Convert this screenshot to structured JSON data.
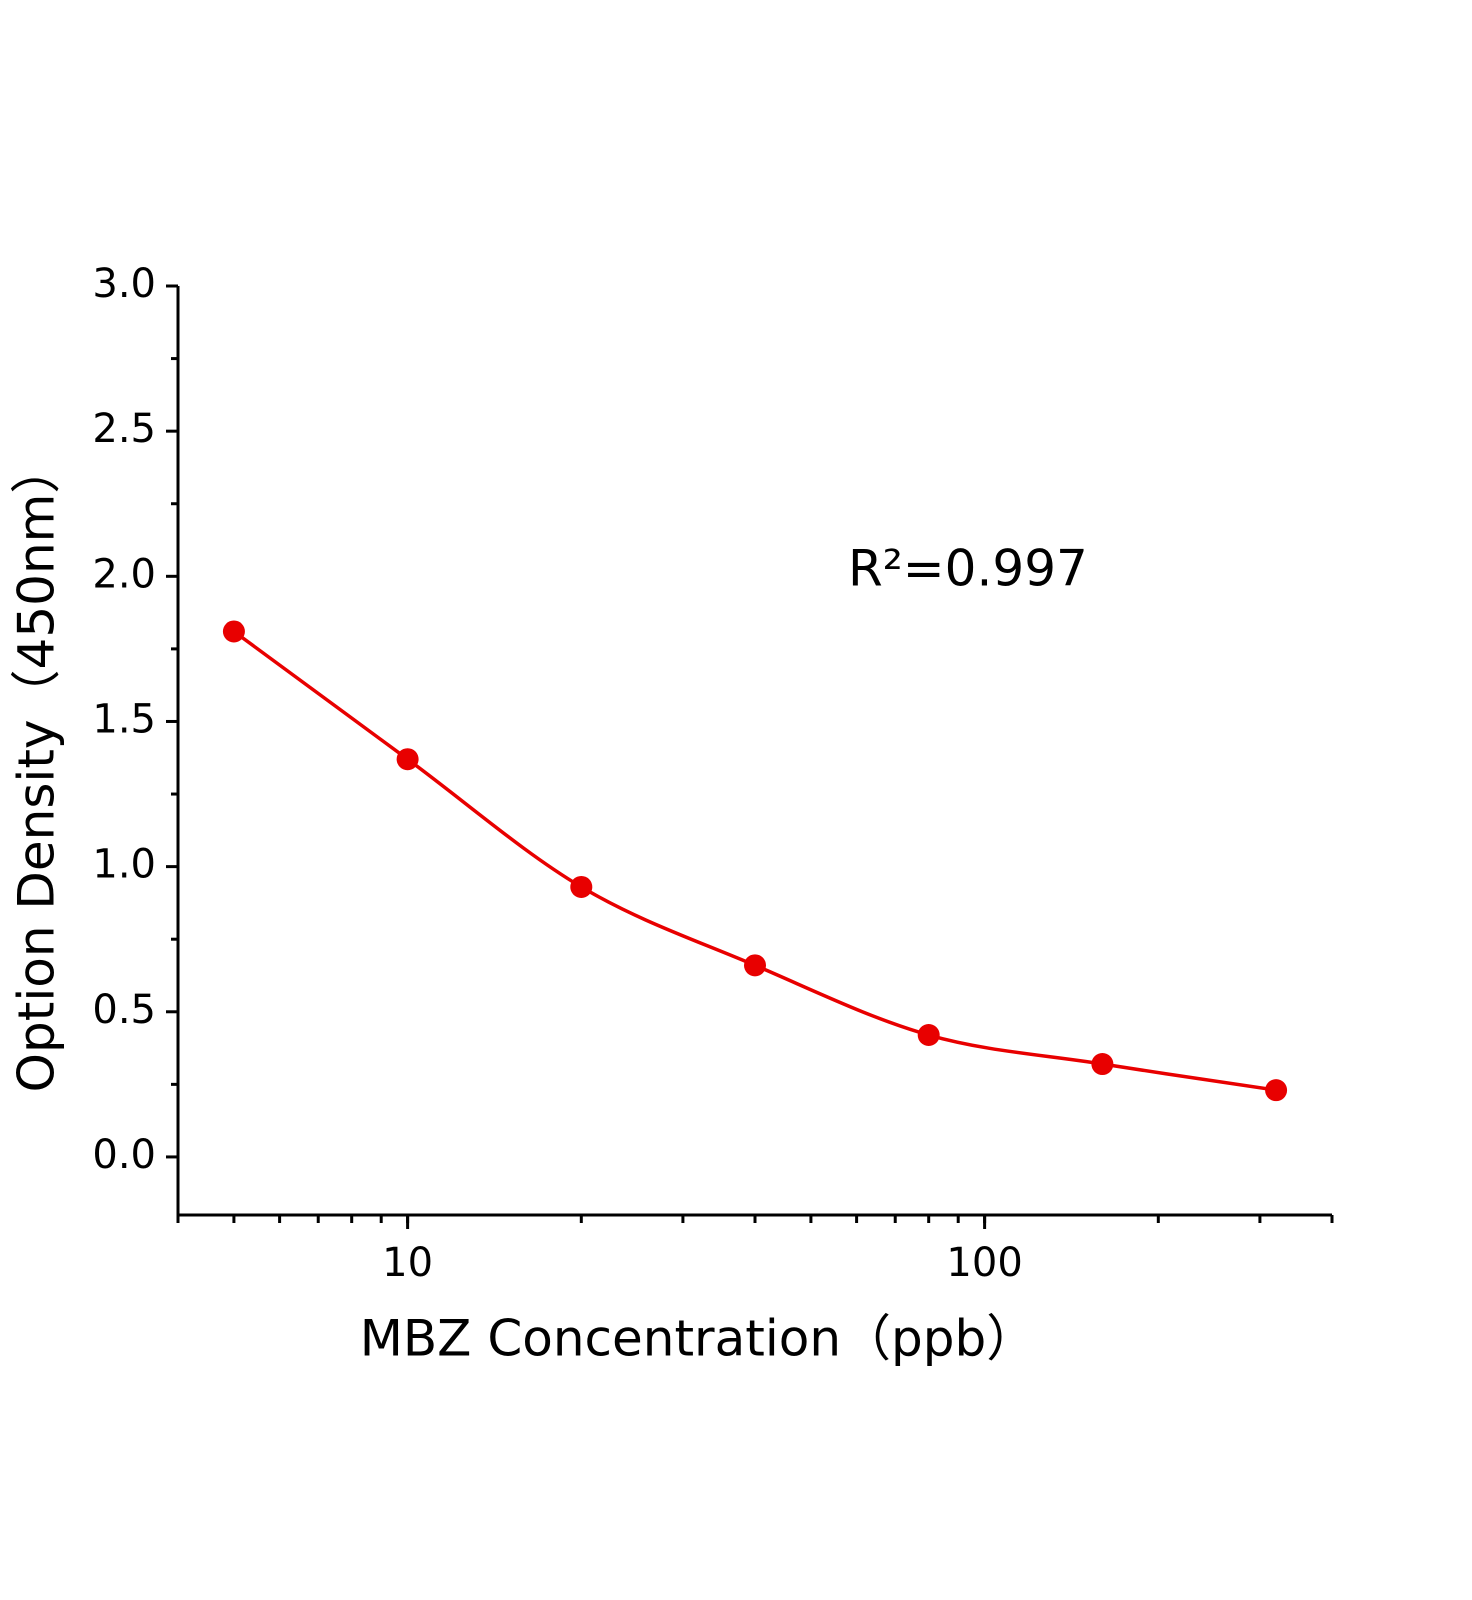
{
  "chart_data": {
    "type": "scatter",
    "x_label": "MBZ Concentration（ppb）",
    "y_label": "Option Density（450nm）",
    "annotation": "R²=0.997",
    "x": [
      5,
      10,
      20,
      40,
      80,
      160,
      320
    ],
    "values": [
      1.81,
      1.37,
      0.93,
      0.66,
      0.42,
      0.32,
      0.23
    ],
    "color": "#e80000",
    "fit_line": true,
    "xscale": "log",
    "xlim": [
      4,
      400
    ],
    "xticks": [
      10,
      100
    ],
    "ylim": [
      -0.2,
      3.0
    ],
    "yticks": [
      {
        "value": 0,
        "label": "0.0"
      },
      0.5,
      {
        "value": 1,
        "label": "1.0"
      },
      1.5,
      {
        "value": 2,
        "label": "2.0"
      },
      2.5,
      {
        "value": 3,
        "label": "3.0"
      }
    ],
    "grid": false
  }
}
